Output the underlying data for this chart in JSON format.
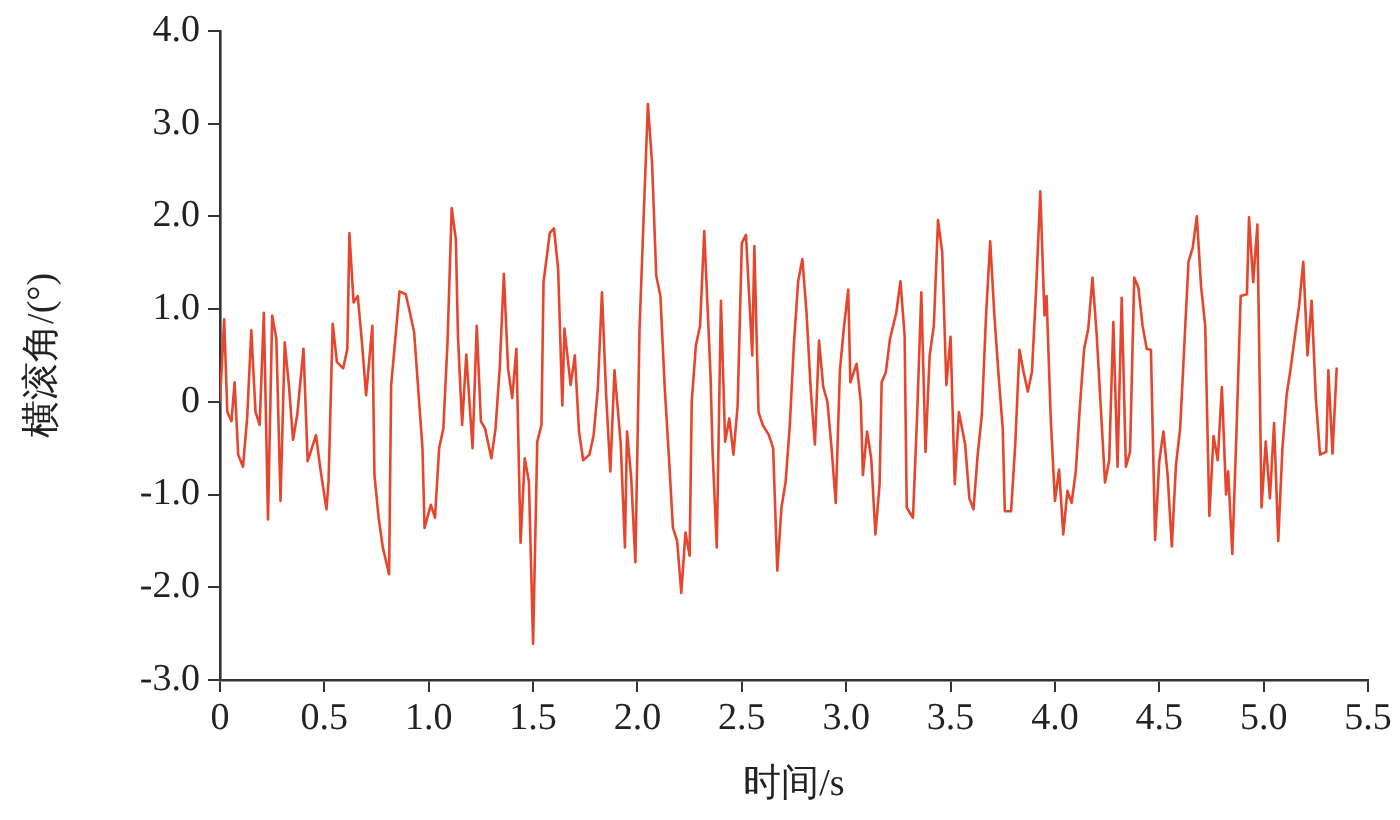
{
  "chart_data": {
    "type": "line",
    "xlabel": "时间/s",
    "ylabel": "横滚角/(°)",
    "xlim": [
      0,
      5.5
    ],
    "ylim": [
      -3,
      4
    ],
    "xticks": [
      0,
      0.5,
      {
        "value": 1,
        "label": "1.0"
      },
      1.5,
      {
        "value": 2,
        "label": "2.0"
      },
      2.5,
      {
        "value": 3,
        "label": "3.0"
      },
      3.5,
      {
        "value": 4,
        "label": "4.0"
      },
      4.5,
      {
        "value": 5,
        "label": "5.0"
      },
      5.5
    ],
    "yticks": [
      {
        "value": -3,
        "label": "-3.0"
      },
      {
        "value": -2,
        "label": "-2.0"
      },
      {
        "value": -1,
        "label": "-1.0"
      },
      0,
      {
        "value": 1,
        "label": "1.0"
      },
      {
        "value": 2,
        "label": "2.0"
      },
      {
        "value": 3,
        "label": "3.0"
      },
      {
        "value": 4,
        "label": "4.0"
      }
    ],
    "grid": false,
    "marker": "none",
    "line_style": "solid",
    "series": [
      {
        "color": "#e5472e",
        "x": [
          0,
          0.02,
          0.035,
          0.055,
          0.07,
          0.087,
          0.11,
          0.13,
          0.15,
          0.17,
          0.19,
          0.21,
          0.23,
          0.25,
          0.27,
          0.29,
          0.31,
          0.33,
          0.35,
          0.37,
          0.4,
          0.42,
          0.44,
          0.46,
          0.48,
          0.51,
          0.52,
          0.54,
          0.56,
          0.59,
          0.61,
          0.62,
          0.64,
          0.66,
          0.68,
          0.7,
          0.73,
          0.74,
          0.76,
          0.78,
          0.81,
          0.82,
          0.84,
          0.86,
          0.89,
          0.91,
          0.93,
          0.97,
          0.98,
          1.01,
          1.03,
          1.05,
          1.07,
          1.09,
          1.11,
          1.13,
          1.14,
          1.16,
          1.18,
          1.21,
          1.23,
          1.25,
          1.27,
          1.3,
          1.32,
          1.34,
          1.36,
          1.38,
          1.4,
          1.42,
          1.44,
          1.46,
          1.48,
          1.5,
          1.52,
          1.54,
          1.55,
          1.58,
          1.6,
          1.62,
          1.64,
          1.65,
          1.68,
          1.7,
          1.72,
          1.74,
          1.77,
          1.79,
          1.81,
          1.83,
          1.85,
          1.87,
          1.89,
          1.92,
          1.94,
          1.95,
          1.97,
          1.99,
          2.01,
          2.03,
          2.05,
          2.07,
          2.09,
          2.11,
          2.13,
          2.15,
          2.17,
          2.19,
          2.21,
          2.23,
          2.25,
          2.26,
          2.28,
          2.3,
          2.32,
          2.35,
          2.36,
          2.38,
          2.4,
          2.42,
          2.44,
          2.46,
          2.48,
          2.5,
          2.52,
          2.55,
          2.56,
          2.58,
          2.6,
          2.63,
          2.65,
          2.67,
          2.69,
          2.71,
          2.73,
          2.75,
          2.77,
          2.79,
          2.81,
          2.83,
          2.85,
          2.87,
          2.89,
          2.91,
          2.93,
          2.95,
          2.97,
          2.99,
          3.01,
          3.02,
          3.05,
          3.07,
          3.08,
          3.1,
          3.12,
          3.14,
          3.16,
          3.17,
          3.19,
          3.21,
          3.24,
          3.26,
          3.28,
          3.29,
          3.32,
          3.34,
          3.36,
          3.38,
          3.4,
          3.42,
          3.44,
          3.46,
          3.48,
          3.5,
          3.52,
          3.54,
          3.57,
          3.59,
          3.61,
          3.63,
          3.65,
          3.67,
          3.69,
          3.71,
          3.73,
          3.75,
          3.76,
          3.79,
          3.81,
          3.83,
          3.85,
          3.87,
          3.89,
          3.91,
          3.93,
          3.95,
          3.96,
          3.98,
          4.0,
          4.02,
          4.04,
          4.06,
          4.08,
          4.1,
          4.12,
          4.14,
          4.16,
          4.18,
          4.2,
          4.22,
          4.24,
          4.26,
          4.28,
          4.3,
          4.32,
          4.34,
          4.36,
          4.38,
          4.4,
          4.42,
          4.44,
          4.46,
          4.48,
          4.5,
          4.52,
          4.54,
          4.56,
          4.58,
          4.6,
          4.62,
          4.64,
          4.66,
          4.68,
          4.7,
          4.72,
          4.74,
          4.76,
          4.78,
          4.8,
          4.82,
          4.83,
          4.85,
          4.87,
          4.89,
          4.92,
          4.93,
          4.95,
          4.97,
          4.99,
          5.01,
          5.03,
          5.05,
          5.07,
          5.09,
          5.11,
          5.13,
          5.15,
          5.17,
          5.19,
          5.21,
          5.23,
          5.25,
          5.27,
          5.3,
          5.31,
          5.33,
          5.35
        ],
        "values": [
          0,
          0.89,
          -0.11,
          -0.21,
          0.21,
          -0.57,
          -0.7,
          -0.18,
          0.77,
          -0.11,
          -0.25,
          0.96,
          -1.27,
          0.93,
          0.68,
          -1.07,
          0.64,
          0.18,
          -0.41,
          -0.14,
          0.57,
          -0.64,
          -0.5,
          -0.36,
          -0.71,
          -1.16,
          -0.86,
          0.84,
          0.43,
          0.36,
          0.57,
          1.82,
          1.07,
          1.14,
          0.64,
          0.07,
          0.82,
          -0.79,
          -1.25,
          -1.57,
          -1.86,
          0.18,
          0.68,
          1.19,
          1.16,
          0.96,
          0.75,
          -0.5,
          -1.36,
          -1.11,
          -1.25,
          -0.5,
          -0.29,
          0.64,
          2.09,
          1.75,
          0.71,
          -0.25,
          0.51,
          -0.5,
          0.82,
          -0.21,
          -0.29,
          -0.61,
          -0.29,
          0.36,
          1.38,
          0.36,
          0.04,
          0.57,
          -1.52,
          -0.61,
          -0.86,
          -2.61,
          -0.43,
          -0.25,
          1.29,
          1.82,
          1.87,
          1.43,
          -0.04,
          0.79,
          0.18,
          0.5,
          -0.32,
          -0.63,
          -0.57,
          -0.36,
          0.14,
          1.18,
          0.07,
          -0.75,
          0.34,
          -0.46,
          -1.57,
          -0.32,
          -0.82,
          -1.73,
          0.79,
          2.01,
          3.21,
          2.57,
          1.36,
          1.14,
          0.18,
          -0.57,
          -1.36,
          -1.5,
          -2.06,
          -1.41,
          -1.66,
          0,
          0.61,
          0.82,
          1.84,
          0.29,
          -0.54,
          -1.57,
          1.09,
          -0.43,
          -0.18,
          -0.57,
          -0.04,
          1.71,
          1.8,
          0.5,
          1.68,
          -0.11,
          -0.25,
          -0.36,
          -0.5,
          -1.82,
          -1.14,
          -0.86,
          -0.25,
          0.64,
          1.3,
          1.54,
          0.96,
          0.14,
          -0.46,
          0.66,
          0.16,
          0,
          -0.5,
          -1.09,
          0.34,
          0.82,
          1.21,
          0.21,
          0.41,
          0,
          -0.79,
          -0.32,
          -0.61,
          -1.43,
          -0.89,
          0.21,
          0.32,
          0.68,
          0.96,
          1.3,
          0.71,
          -1.14,
          -1.25,
          -0.14,
          1.18,
          -0.54,
          0.5,
          0.82,
          1.96,
          1.61,
          0.18,
          0.7,
          -0.89,
          -0.11,
          -0.46,
          -1.04,
          -1.16,
          -0.57,
          -0.14,
          0.93,
          1.73,
          0.93,
          0.29,
          -0.29,
          -1.18,
          -1.18,
          -0.46,
          0.56,
          0.32,
          0.11,
          0.32,
          1.21,
          2.27,
          0.93,
          1.14,
          -0.18,
          -1.07,
          -0.73,
          -1.43,
          -0.96,
          -1.09,
          -0.75,
          -0.04,
          0.57,
          0.79,
          1.34,
          0.73,
          -0.07,
          -0.87,
          -0.63,
          0.86,
          -0.7,
          1.12,
          -0.7,
          -0.54,
          1.34,
          1.23,
          0.82,
          0.57,
          0.56,
          -1.49,
          -0.64,
          -0.32,
          -0.79,
          -1.56,
          -0.68,
          -0.29,
          0.61,
          1.51,
          1.66,
          2.0,
          1.25,
          0.82,
          -1.23,
          -0.37,
          -0.63,
          0.16,
          -1.0,
          -0.75,
          -1.64,
          -0.32,
          1.14,
          1.16,
          1.99,
          1.29,
          1.91,
          -1.14,
          -0.43,
          -1.04,
          -0.23,
          -1.5,
          -0.5,
          0.07,
          0.37,
          0.71,
          1.04,
          1.51,
          0.5,
          1.09,
          0.04,
          -0.57,
          -0.54,
          0.34,
          -0.56,
          0.37
        ]
      }
    ]
  }
}
